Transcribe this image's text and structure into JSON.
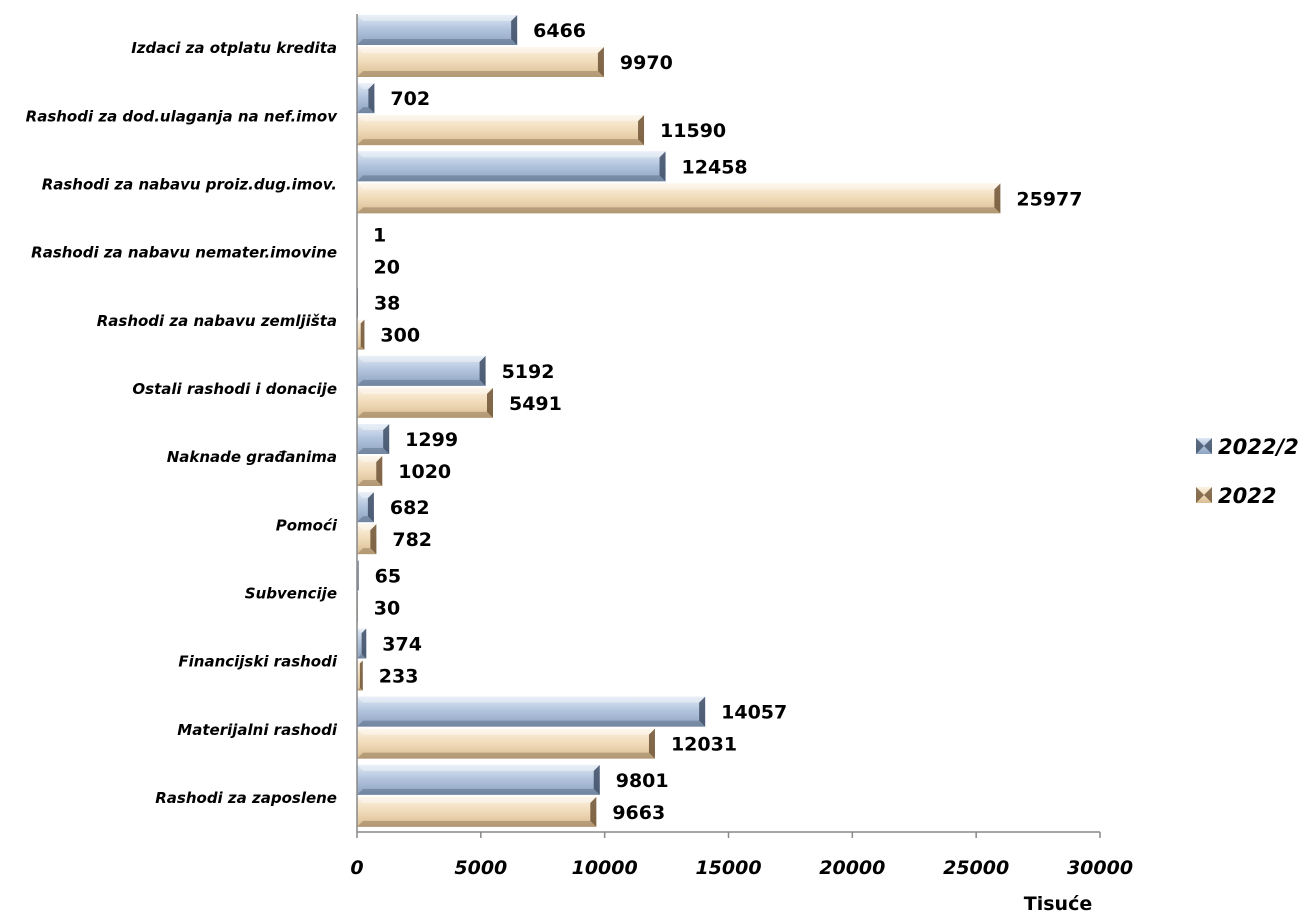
{
  "chart_data": {
    "type": "bar",
    "orientation": "horizontal",
    "categories": [
      "Izdaci za otplatu kredita",
      "Rashodi za dod.ulaganja na nef.imov",
      "Rashodi za nabavu proiz.dug.imov.",
      "Rashodi za nabavu nemater.imovine",
      "Rashodi za nabavu zemljišta",
      "Ostali rashodi i donacije",
      "Naknade građanima",
      "Pomoći",
      "Subvencije",
      "Financijski rashodi",
      "Materijalni rashodi",
      "Rashodi za zaposlene"
    ],
    "series": [
      {
        "name": "2022/2",
        "values": [
          6466,
          702,
          12458,
          1,
          38,
          5192,
          1299,
          682,
          65,
          374,
          14057,
          9801
        ]
      },
      {
        "name": "2022",
        "values": [
          9970,
          11590,
          25977,
          20,
          300,
          5491,
          1020,
          782,
          30,
          233,
          12031,
          9663
        ]
      }
    ],
    "xlim": [
      0,
      30000
    ],
    "xticks": [
      0,
      5000,
      10000,
      15000,
      20000,
      25000,
      30000
    ],
    "xlabel": "Tisuće",
    "ylabel": "",
    "title": "",
    "legend_position": "right",
    "grid": false,
    "colors": {
      "2022/2": "#a9bcd6",
      "2022/2_dark": "#3f4f66",
      "2022": "#f3dfc0",
      "2022_dark": "#6e5436"
    }
  }
}
